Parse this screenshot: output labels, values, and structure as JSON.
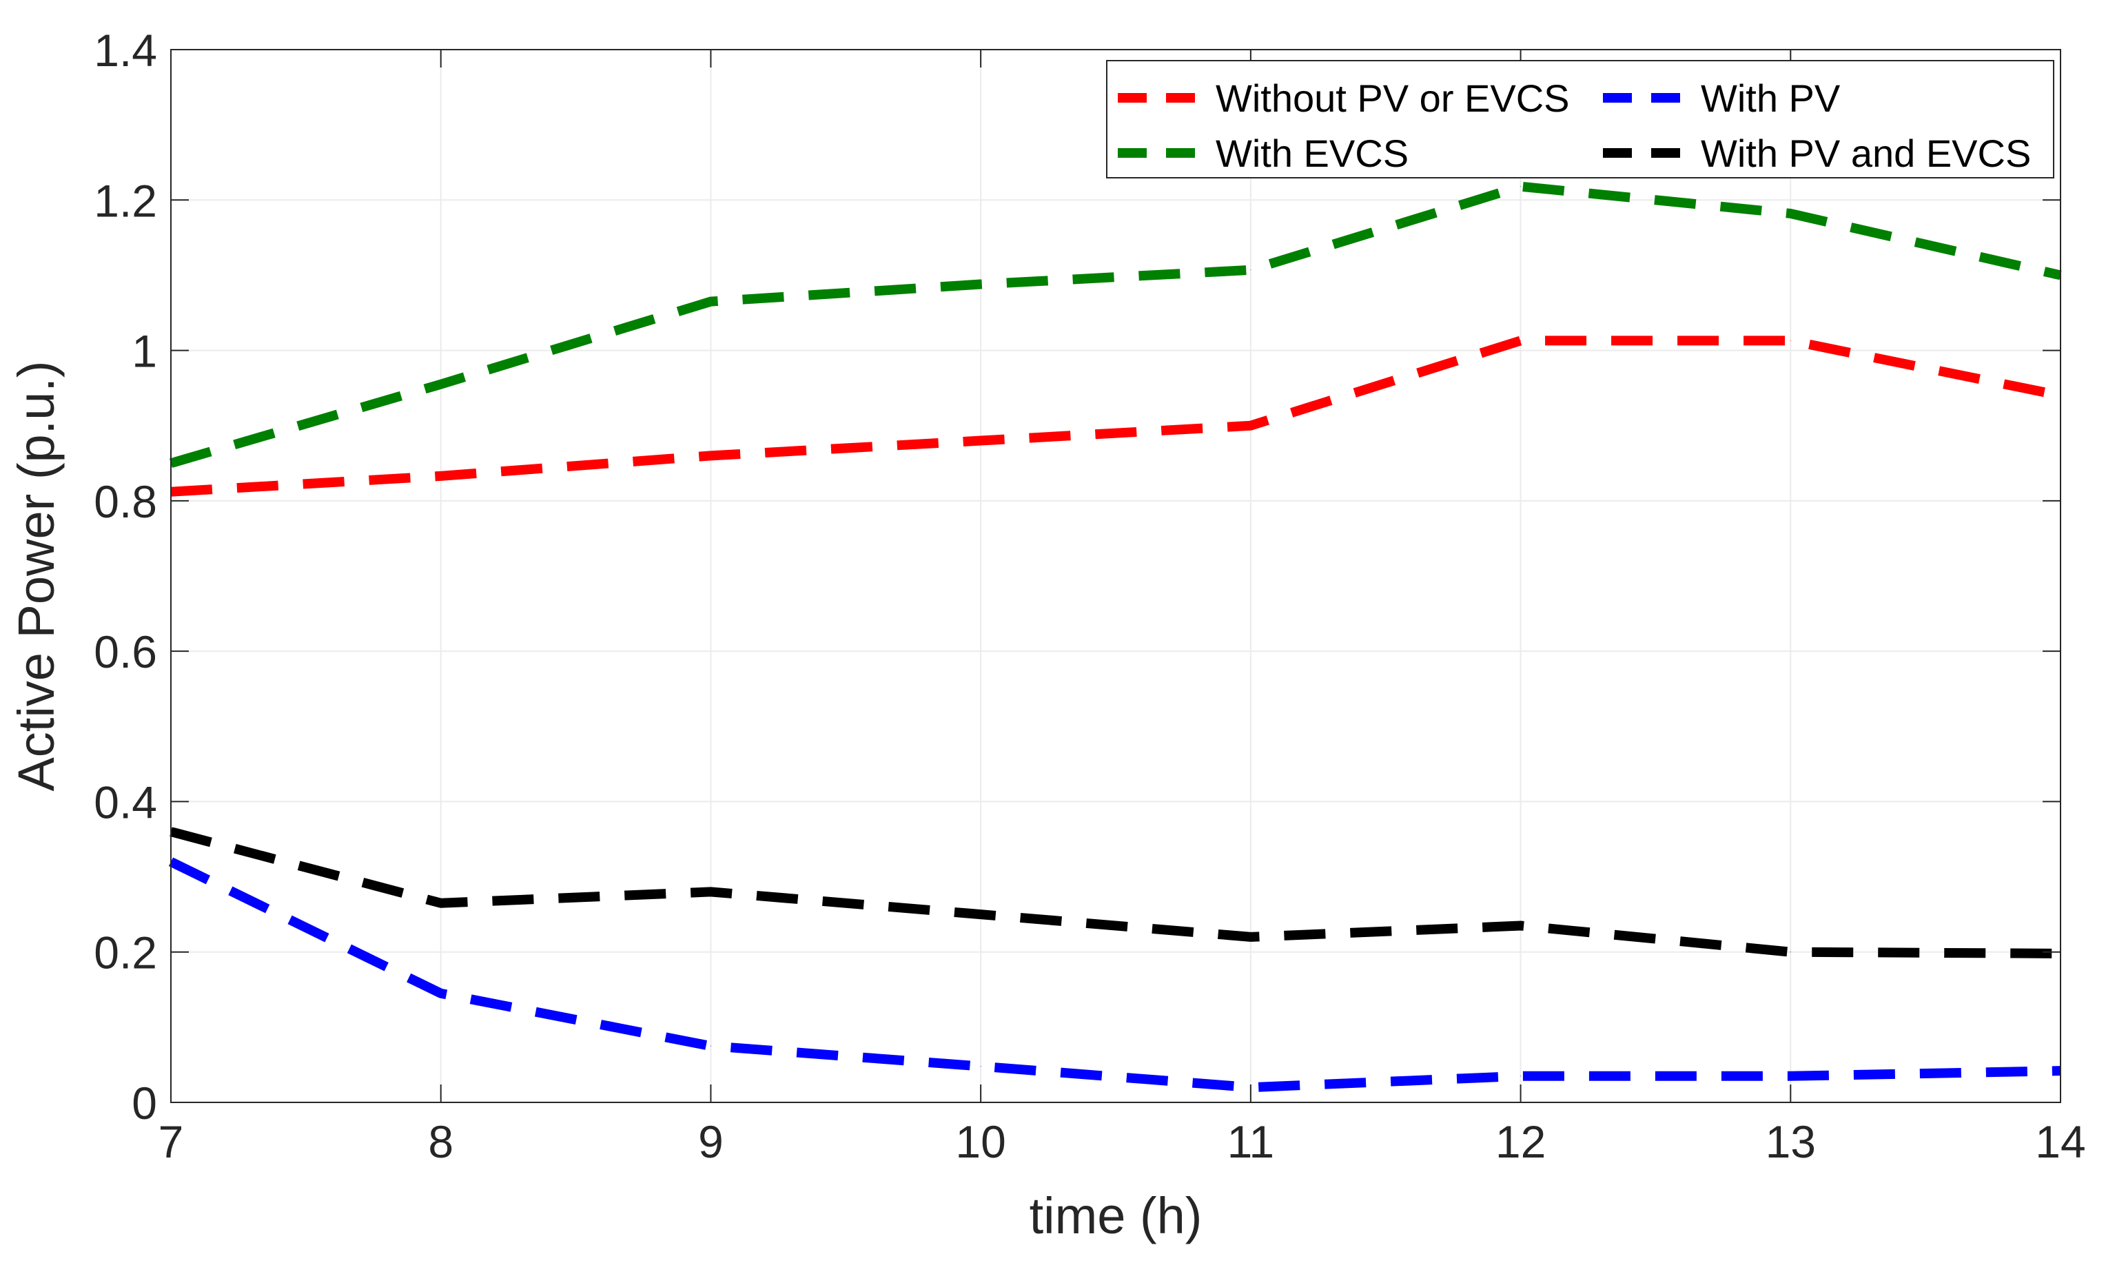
{
  "chart_data": {
    "type": "line",
    "title": "",
    "xlabel": "time (h)",
    "ylabel": "Active Power (p.u.)",
    "x": [
      7,
      8,
      9,
      10,
      11,
      12,
      13,
      14
    ],
    "xlim": [
      7,
      14
    ],
    "ylim": [
      0,
      1.4
    ],
    "xticks": [
      7,
      8,
      9,
      10,
      11,
      12,
      13,
      14
    ],
    "yticks": [
      0,
      0.2,
      0.4,
      0.6,
      0.8,
      1,
      1.2,
      1.4
    ],
    "ytick_labels": [
      "0",
      "0.2",
      "0.4",
      "0.6",
      "0.8",
      "1",
      "1.2",
      "1.4"
    ],
    "grid": true,
    "legend_position": "top-right",
    "series": [
      {
        "name": "Without PV or EVCS",
        "color": "#ff0000",
        "line_style": "dashed",
        "values": [
          0.812,
          0.833,
          0.86,
          0.88,
          0.9,
          1.013,
          1.013,
          0.94
        ]
      },
      {
        "name": "With PV",
        "color": "#0000ff",
        "line_style": "dashed",
        "values": [
          0.32,
          0.145,
          0.075,
          0.048,
          0.02,
          0.035,
          0.035,
          0.042
        ]
      },
      {
        "name": "With EVCS",
        "color": "#008000",
        "line_style": "dashed",
        "values": [
          0.85,
          0.955,
          1.065,
          1.088,
          1.107,
          1.218,
          1.182,
          1.1
        ]
      },
      {
        "name": "With PV and EVCS",
        "color": "#000000",
        "line_style": "dashed",
        "values": [
          0.36,
          0.265,
          0.28,
          0.25,
          0.22,
          0.235,
          0.2,
          0.198
        ]
      }
    ]
  }
}
